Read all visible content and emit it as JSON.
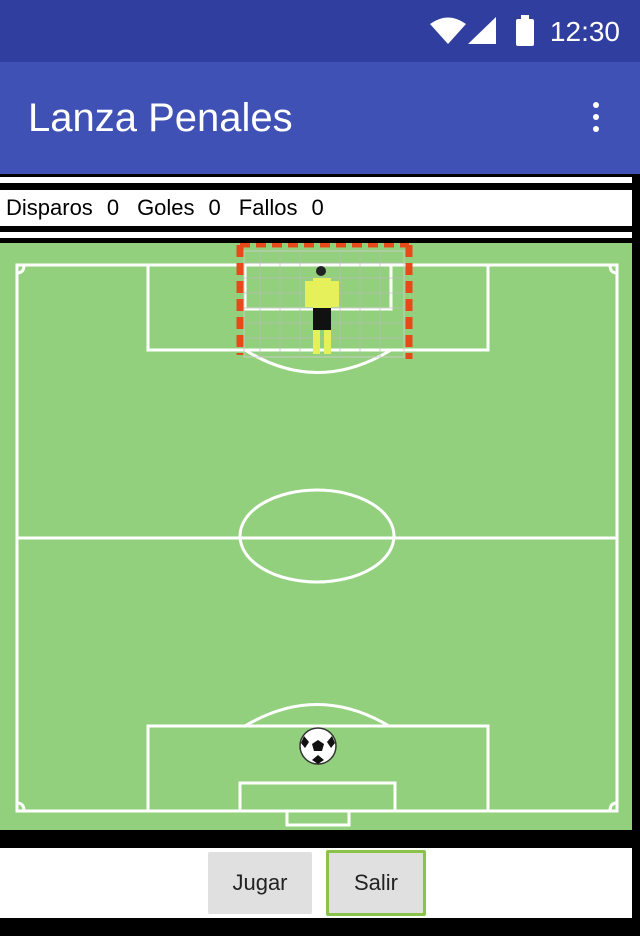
{
  "status_bar": {
    "time": "12:30",
    "icons": [
      "wifi-icon",
      "signal-icon",
      "battery-icon"
    ]
  },
  "app_bar": {
    "title": "Lanza Penales",
    "menu_icon": "more-vert-icon"
  },
  "score": {
    "shots_label": "Disparos",
    "shots_value": "0",
    "goals_label": "Goles",
    "goals_value": "0",
    "misses_label": "Fallos",
    "misses_value": "0"
  },
  "buttons": {
    "play_label": "Jugar",
    "exit_label": "Salir"
  },
  "colors": {
    "status_bar": "#303F9F",
    "app_bar": "#3F51B5",
    "field": "#92D07E",
    "goal_post": "#E64A19",
    "focus_border": "#8BC34A"
  }
}
